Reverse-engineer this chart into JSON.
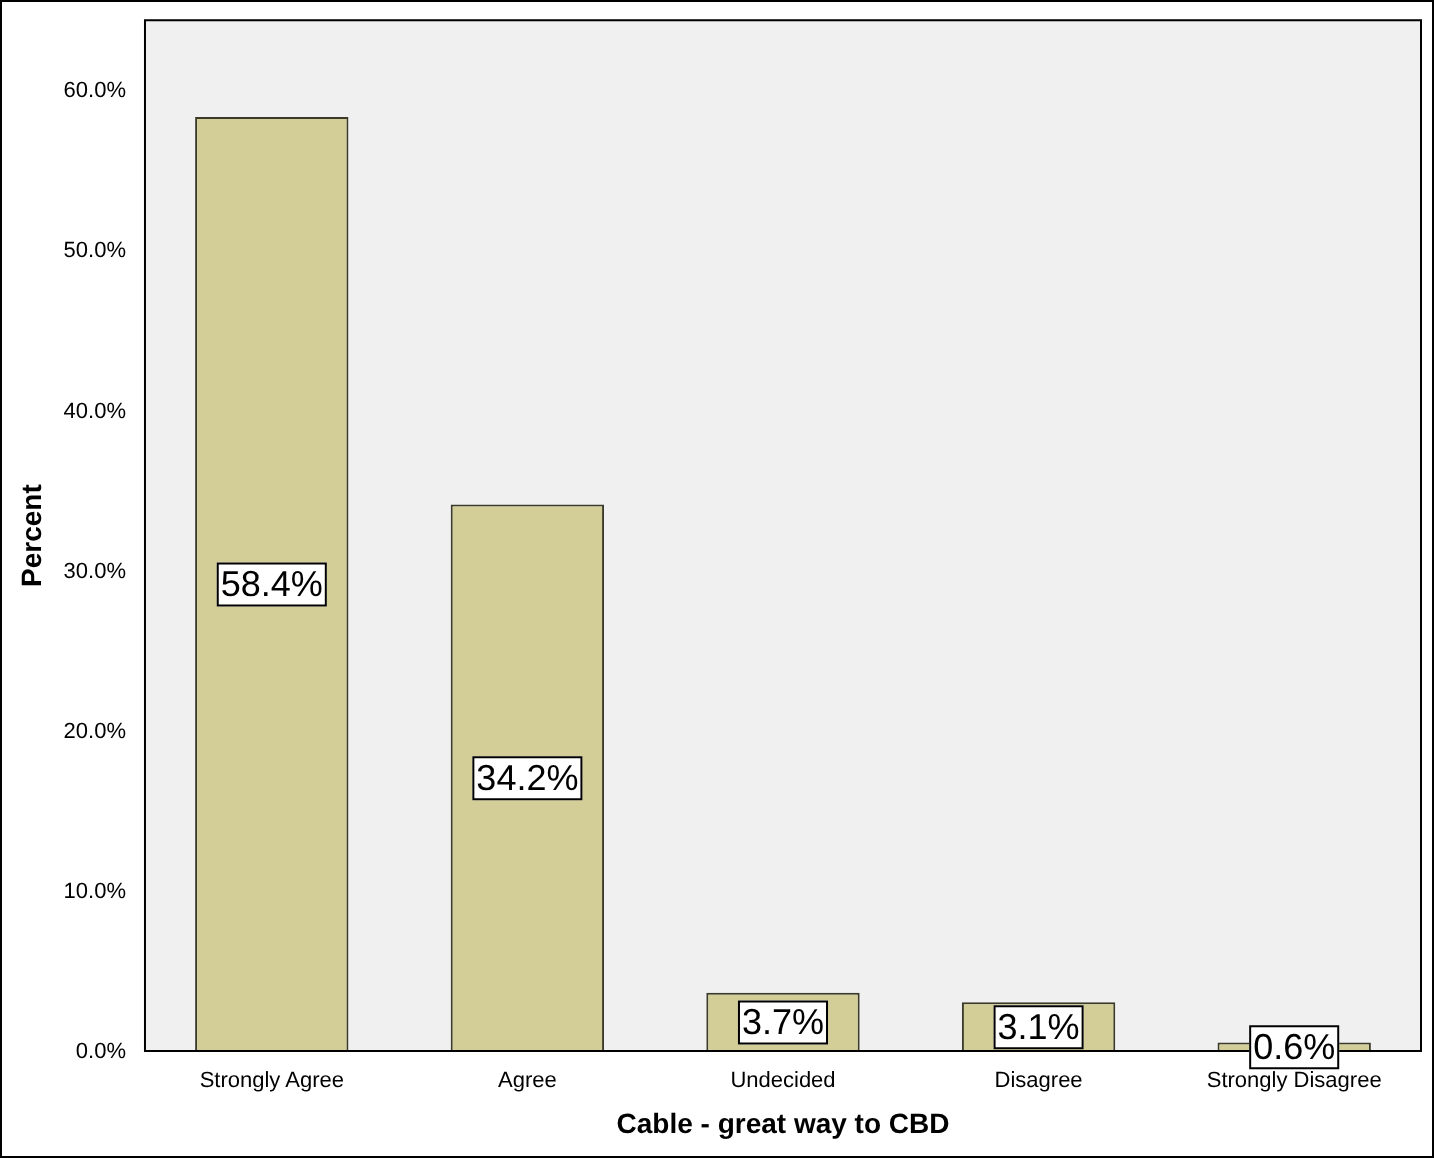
{
  "chart_data": {
    "type": "bar",
    "xlabel": "Cable - great way to CBD",
    "ylabel": "Percent",
    "categories": [
      "Strongly Agree",
      "Agree",
      "Undecided",
      "Disagree",
      "Strongly Disagree"
    ],
    "values": [
      58.4,
      34.2,
      3.7,
      3.1,
      0.6
    ],
    "value_labels": [
      "58.4%",
      "34.2%",
      "3.7%",
      "3.1%",
      "0.6%"
    ],
    "color": "#d3ce97",
    "ylim": [
      0,
      64.5
    ],
    "yticks": [
      {
        "value": 0,
        "label": "0.0%"
      },
      {
        "value": 10,
        "label": "10.0%"
      },
      {
        "value": 20,
        "label": "20.0%"
      },
      {
        "value": 30,
        "label": "30.0%"
      },
      {
        "value": 40,
        "label": "40.0%"
      },
      {
        "value": 50,
        "label": "50.0%"
      },
      {
        "value": 60,
        "label": "60.0%"
      }
    ],
    "grid": false,
    "legend": false
  }
}
